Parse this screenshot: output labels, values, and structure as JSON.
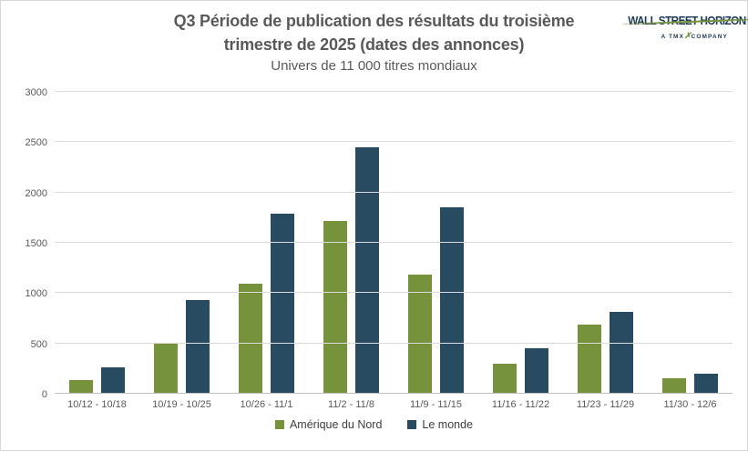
{
  "header": {
    "title_line1": "Q3 Période de publication des résultats du troisième",
    "title_line2": "trimestre de 2025 (dates des annonces)",
    "subtitle": "Univers de 11 000 titres mondiaux"
  },
  "logo": {
    "brand": "WALL STREET HORIZON",
    "tagline_prefix": "A TMX",
    "tagline_suffix": "COMPANY",
    "brand_color": "#1c3a57",
    "swoosh_color": "#76933c"
  },
  "chart_data": {
    "type": "bar",
    "title": "Q3 Période de publication des résultats du troisième trimestre de 2025 (dates des annonces)",
    "subtitle": "Univers de 11 000 titres mondiaux",
    "categories": [
      "10/12 - 10/18",
      "10/19 - 10/25",
      "10/26 - 11/1",
      "11/2 - 11/8",
      "11/9 - 11/15",
      "11/16 - 11/22",
      "11/23 - 11/29",
      "11/30 - 12/6"
    ],
    "series": [
      {
        "name": "Amérique du Nord",
        "color": "#76933c",
        "values": [
          140,
          510,
          1095,
          1720,
          1185,
          300,
          690,
          155
        ]
      },
      {
        "name": "Le monde",
        "color": "#294b61",
        "values": [
          260,
          930,
          1785,
          2450,
          1850,
          450,
          810,
          200
        ]
      }
    ],
    "xlabel": "",
    "ylabel": "",
    "ylim": [
      0,
      3000
    ],
    "yticks": [
      0,
      500,
      1000,
      1500,
      2000,
      2500,
      3000
    ],
    "grid": true,
    "legend_position": "bottom",
    "gridline_color": "#dcdcdc",
    "text_color": "#595959"
  }
}
